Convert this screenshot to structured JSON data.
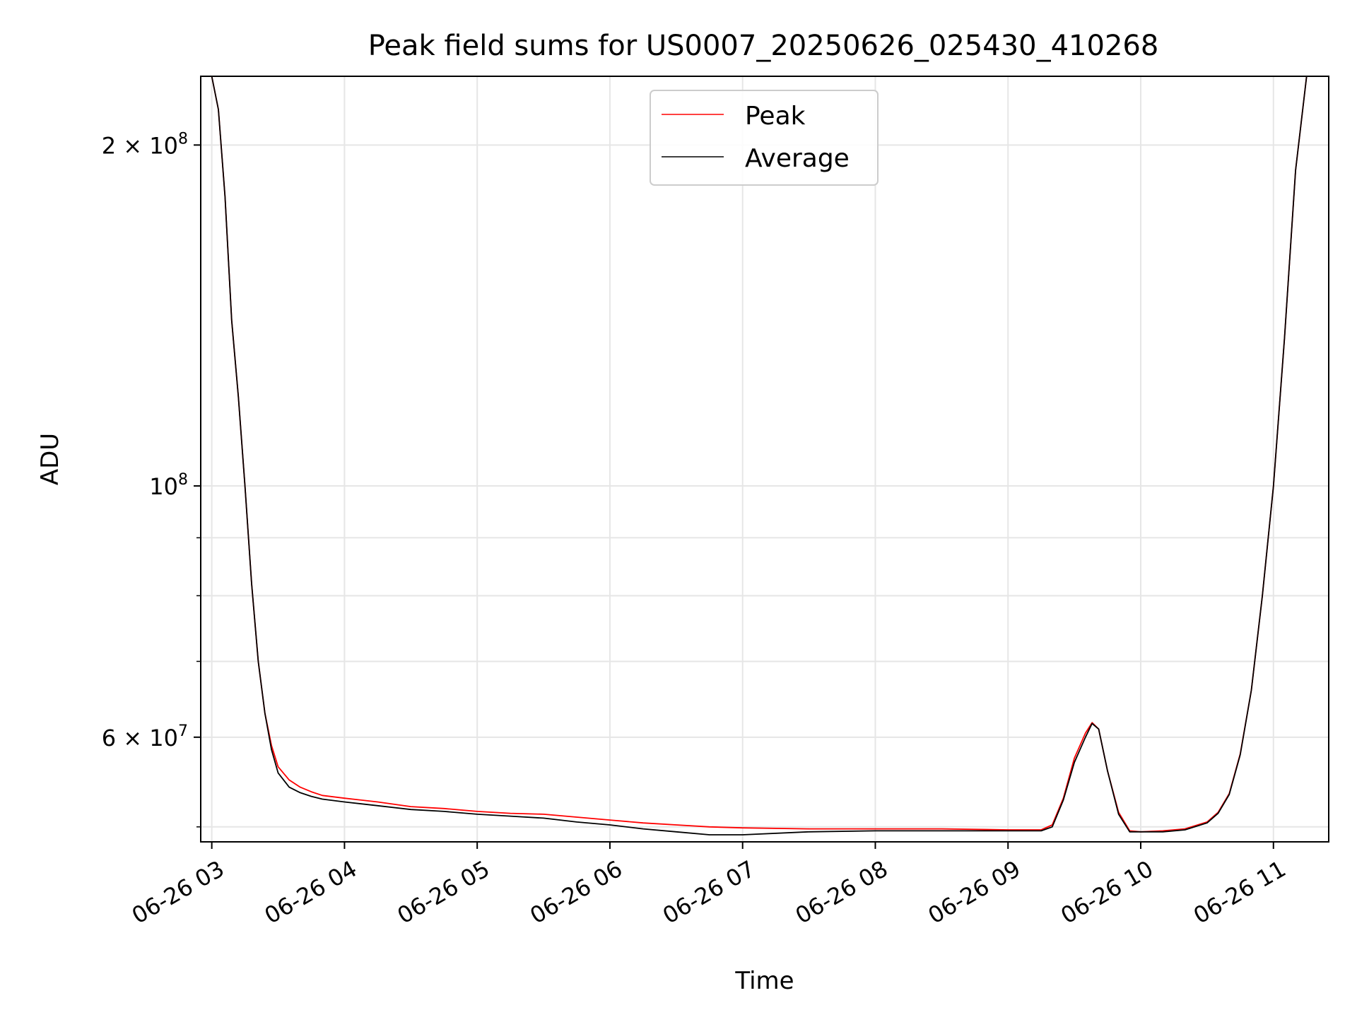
{
  "chart_data": {
    "type": "line",
    "title": "Peak field sums for US0007_20250626_025430_410268",
    "xlabel": "Time",
    "ylabel": "ADU",
    "xlim": [
      "2025-06-26 02:55",
      "2025-06-26 11:25"
    ],
    "ylim": [
      48500000,
      230000000
    ],
    "yscale": "log",
    "grid": true,
    "legend_position": "top-center",
    "x_ticks": [
      {
        "value": "2025-06-26 03:00",
        "label": "06-26 03"
      },
      {
        "value": "2025-06-26 04:00",
        "label": "06-26 04"
      },
      {
        "value": "2025-06-26 05:00",
        "label": "06-26 05"
      },
      {
        "value": "2025-06-26 06:00",
        "label": "06-26 06"
      },
      {
        "value": "2025-06-26 07:00",
        "label": "06-26 07"
      },
      {
        "value": "2025-06-26 08:00",
        "label": "06-26 08"
      },
      {
        "value": "2025-06-26 09:00",
        "label": "06-26 09"
      },
      {
        "value": "2025-06-26 10:00",
        "label": "06-26 10"
      },
      {
        "value": "2025-06-26 11:00",
        "label": "06-26 11"
      }
    ],
    "y_ticks": [
      {
        "value": 200000000,
        "base": "2",
        "exp": "8",
        "label": "2 × 10^8"
      },
      {
        "value": 100000000,
        "base": "",
        "exp": "8",
        "label": "10^8"
      },
      {
        "value": 60000000,
        "base": "6",
        "exp": "7",
        "label": "6 × 10^7"
      }
    ],
    "y_minor_ticks": [
      50000000,
      70000000,
      80000000,
      90000000
    ],
    "series": [
      {
        "name": "Peak",
        "color": "#ff0000",
        "x": [
          "2025-06-26 02:54",
          "2025-06-26 02:58",
          "2025-06-26 03:00",
          "2025-06-26 03:03",
          "2025-06-26 03:06",
          "2025-06-26 03:09",
          "2025-06-26 03:12",
          "2025-06-26 03:15",
          "2025-06-26 03:18",
          "2025-06-26 03:21",
          "2025-06-26 03:24",
          "2025-06-26 03:27",
          "2025-06-26 03:30",
          "2025-06-26 03:35",
          "2025-06-26 03:40",
          "2025-06-26 03:45",
          "2025-06-26 03:50",
          "2025-06-26 04:00",
          "2025-06-26 04:15",
          "2025-06-26 04:30",
          "2025-06-26 04:45",
          "2025-06-26 05:00",
          "2025-06-26 05:15",
          "2025-06-26 05:30",
          "2025-06-26 05:45",
          "2025-06-26 06:00",
          "2025-06-26 06:15",
          "2025-06-26 06:30",
          "2025-06-26 06:45",
          "2025-06-26 07:00",
          "2025-06-26 07:30",
          "2025-06-26 08:00",
          "2025-06-26 08:30",
          "2025-06-26 09:00",
          "2025-06-26 09:15",
          "2025-06-26 09:20",
          "2025-06-26 09:25",
          "2025-06-26 09:30",
          "2025-06-26 09:35",
          "2025-06-26 09:38",
          "2025-06-26 09:41",
          "2025-06-26 09:45",
          "2025-06-26 09:50",
          "2025-06-26 09:55",
          "2025-06-26 10:00",
          "2025-06-26 10:10",
          "2025-06-26 10:20",
          "2025-06-26 10:30",
          "2025-06-26 10:35",
          "2025-06-26 10:40",
          "2025-06-26 10:45",
          "2025-06-26 10:50",
          "2025-06-26 10:55",
          "2025-06-26 11:00",
          "2025-06-26 11:05",
          "2025-06-26 11:10",
          "2025-06-26 11:15",
          "2025-06-26 11:25"
        ],
        "y": [
          230000000,
          230000000,
          230000000,
          215000000,
          180000000,
          140000000,
          120000000,
          100000000,
          82000000,
          70000000,
          63000000,
          59000000,
          56500000,
          55000000,
          54200000,
          53700000,
          53300000,
          53000000,
          52600000,
          52100000,
          51900000,
          51600000,
          51400000,
          51300000,
          51000000,
          50700000,
          50400000,
          50200000,
          50000000,
          49900000,
          49800000,
          49800000,
          49800000,
          49700000,
          49700000,
          50200000,
          53000000,
          57500000,
          60500000,
          61800000,
          61000000,
          56000000,
          51500000,
          49600000,
          49500000,
          49600000,
          49800000,
          50500000,
          51500000,
          53500000,
          58000000,
          66000000,
          80000000,
          100000000,
          135000000,
          190000000,
          230000000,
          230000000
        ]
      },
      {
        "name": "Average",
        "color": "#000000",
        "x": [
          "2025-06-26 02:54",
          "2025-06-26 02:58",
          "2025-06-26 03:00",
          "2025-06-26 03:03",
          "2025-06-26 03:06",
          "2025-06-26 03:09",
          "2025-06-26 03:12",
          "2025-06-26 03:15",
          "2025-06-26 03:18",
          "2025-06-26 03:21",
          "2025-06-26 03:24",
          "2025-06-26 03:27",
          "2025-06-26 03:30",
          "2025-06-26 03:35",
          "2025-06-26 03:40",
          "2025-06-26 03:45",
          "2025-06-26 03:50",
          "2025-06-26 04:00",
          "2025-06-26 04:15",
          "2025-06-26 04:30",
          "2025-06-26 04:45",
          "2025-06-26 05:00",
          "2025-06-26 05:15",
          "2025-06-26 05:30",
          "2025-06-26 05:45",
          "2025-06-26 06:00",
          "2025-06-26 06:15",
          "2025-06-26 06:30",
          "2025-06-26 06:45",
          "2025-06-26 07:00",
          "2025-06-26 07:30",
          "2025-06-26 08:00",
          "2025-06-26 08:30",
          "2025-06-26 09:00",
          "2025-06-26 09:15",
          "2025-06-26 09:20",
          "2025-06-26 09:25",
          "2025-06-26 09:30",
          "2025-06-26 09:35",
          "2025-06-26 09:38",
          "2025-06-26 09:41",
          "2025-06-26 09:45",
          "2025-06-26 09:50",
          "2025-06-26 09:55",
          "2025-06-26 10:00",
          "2025-06-26 10:10",
          "2025-06-26 10:20",
          "2025-06-26 10:30",
          "2025-06-26 10:35",
          "2025-06-26 10:40",
          "2025-06-26 10:45",
          "2025-06-26 10:50",
          "2025-06-26 10:55",
          "2025-06-26 11:00",
          "2025-06-26 11:05",
          "2025-06-26 11:10",
          "2025-06-26 11:15",
          "2025-06-26 11:25"
        ],
        "y": [
          230000000,
          230000000,
          230000000,
          215000000,
          180000000,
          140000000,
          120000000,
          100000000,
          82000000,
          70000000,
          63000000,
          58500000,
          55800000,
          54200000,
          53600000,
          53200000,
          52900000,
          52600000,
          52200000,
          51800000,
          51600000,
          51300000,
          51100000,
          50900000,
          50500000,
          50200000,
          49800000,
          49500000,
          49200000,
          49200000,
          49500000,
          49600000,
          49600000,
          49600000,
          49600000,
          50000000,
          52800000,
          57000000,
          60000000,
          61700000,
          61000000,
          56000000,
          51300000,
          49500000,
          49500000,
          49500000,
          49700000,
          50400000,
          51400000,
          53400000,
          57900000,
          66000000,
          80000000,
          100000000,
          135000000,
          190000000,
          230000000,
          230000000
        ]
      }
    ]
  }
}
